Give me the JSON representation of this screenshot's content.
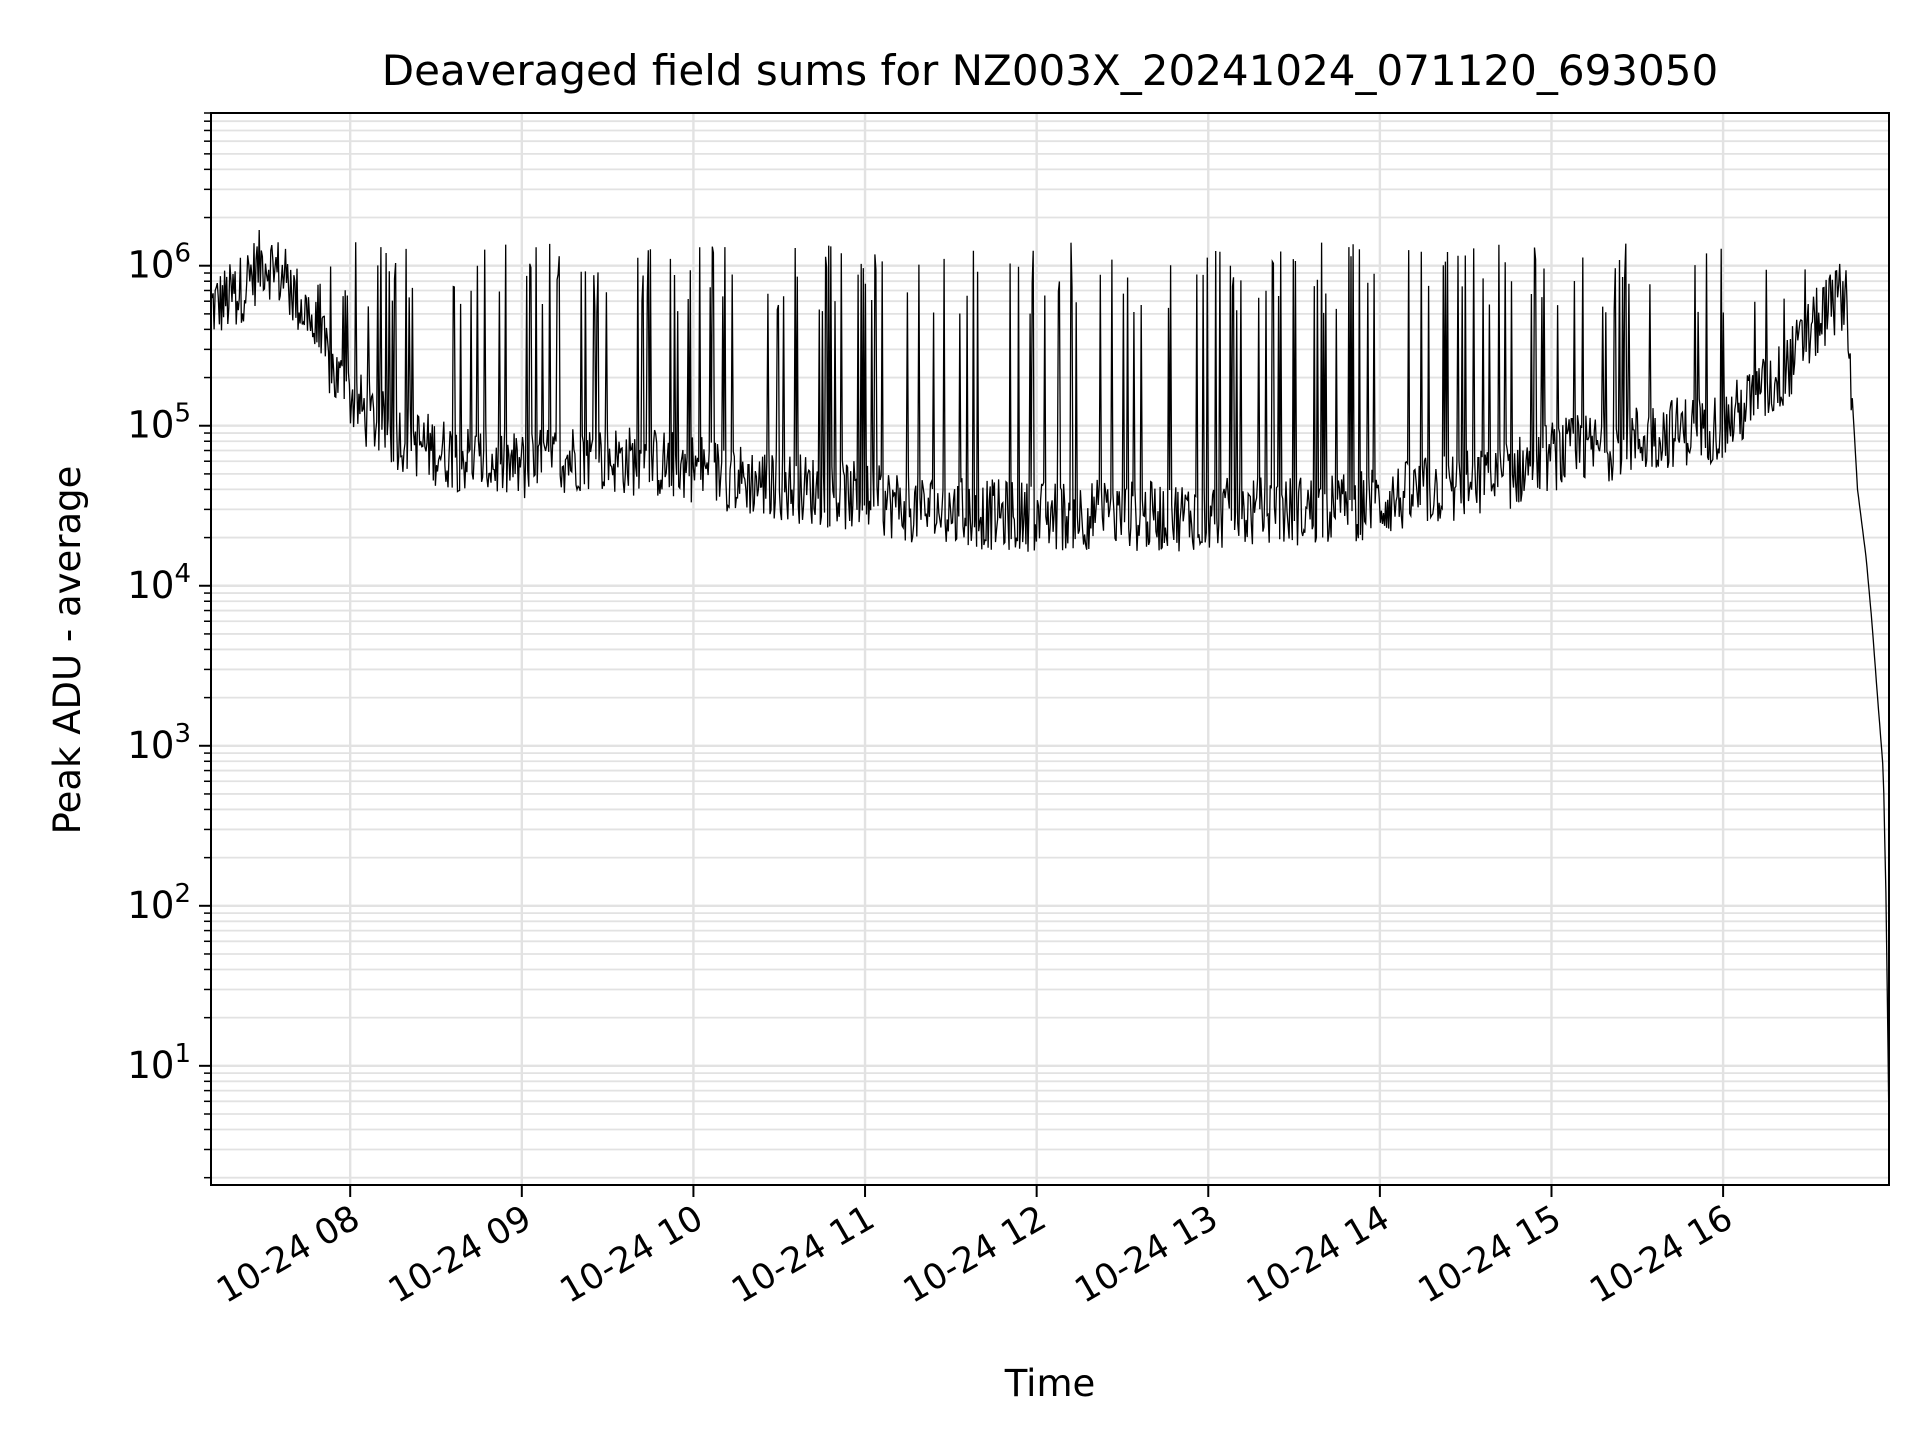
{
  "chart_data": {
    "type": "line",
    "title": "Deaveraged field sums for NZ003X_20241024_071120_693050",
    "xlabel": "Time",
    "ylabel": "Peak ADU - average",
    "xscale": "time",
    "yscale": "log",
    "xlim": [
      "2024-10-24T07:11:20",
      "2024-10-24T16:58:00"
    ],
    "ylim": [
      1.8,
      9000000
    ],
    "grid": "on (major and minor)",
    "line_color": "#000000",
    "x_ticks": [
      {
        "value": "2024-10-24T08:00:00",
        "label": "10-24 08"
      },
      {
        "value": "2024-10-24T09:00:00",
        "label": "10-24 09"
      },
      {
        "value": "2024-10-24T10:00:00",
        "label": "10-24 10"
      },
      {
        "value": "2024-10-24T11:00:00",
        "label": "10-24 11"
      },
      {
        "value": "2024-10-24T12:00:00",
        "label": "10-24 12"
      },
      {
        "value": "2024-10-24T13:00:00",
        "label": "10-24 13"
      },
      {
        "value": "2024-10-24T14:00:00",
        "label": "10-24 14"
      },
      {
        "value": "2024-10-24T15:00:00",
        "label": "10-24 15"
      },
      {
        "value": "2024-10-24T16:00:00",
        "label": "10-24 16"
      }
    ],
    "y_ticks": [
      {
        "value": 10,
        "base": "10",
        "exp": "1"
      },
      {
        "value": 100,
        "base": "10",
        "exp": "2"
      },
      {
        "value": 1000,
        "base": "10",
        "exp": "3"
      },
      {
        "value": 10000,
        "base": "10",
        "exp": "4"
      },
      {
        "value": 100000,
        "base": "10",
        "exp": "5"
      },
      {
        "value": 1000000,
        "base": "10",
        "exp": "6"
      }
    ],
    "series": [
      {
        "x": [
          "2024-10-24T07:11:20",
          "2024-10-24T07:20:00",
          "2024-10-24T07:30:00",
          "2024-10-24T07:35:00",
          "2024-10-24T07:45:00",
          "2024-10-24T07:55:00",
          "2024-10-24T08:05:00",
          "2024-10-24T08:15:00",
          "2024-10-24T08:30:00",
          "2024-10-24T08:45:00",
          "2024-10-24T09:00:00",
          "2024-10-24T09:20:00",
          "2024-10-24T09:40:00",
          "2024-10-24T10:00:00",
          "2024-10-24T10:20:00",
          "2024-10-24T10:40:00",
          "2024-10-24T11:00:00",
          "2024-10-24T11:20:00",
          "2024-10-24T11:40:00",
          "2024-10-24T12:00:00",
          "2024-10-24T12:20:00",
          "2024-10-24T12:40:00",
          "2024-10-24T13:00:00",
          "2024-10-24T13:20:00",
          "2024-10-24T13:40:00",
          "2024-10-24T14:00:00",
          "2024-10-24T14:20:00",
          "2024-10-24T14:40:00",
          "2024-10-24T15:00:00",
          "2024-10-24T15:20:00",
          "2024-10-24T15:40:00",
          "2024-10-24T16:00:00",
          "2024-10-24T16:20:00",
          "2024-10-24T16:35:00",
          "2024-10-24T16:43:00",
          "2024-10-24T16:47:00",
          "2024-10-24T16:50:00",
          "2024-10-24T16:52:00",
          "2024-10-24T16:54:00",
          "2024-10-24T16:56:00",
          "2024-10-24T16:57:00",
          "2024-10-24T16:58:00"
        ],
        "y": [
          550000,
          650000,
          1100000,
          900000,
          500000,
          200000,
          120000,
          90000,
          70000,
          60000,
          55000,
          65000,
          60000,
          55000,
          45000,
          40000,
          35000,
          30000,
          28000,
          27000,
          28000,
          27000,
          28000,
          29000,
          30000,
          33000,
          40000,
          45000,
          65000,
          75000,
          90000,
          100000,
          200000,
          500000,
          700000,
          40000,
          15000,
          6000,
          2000,
          700,
          100,
          4
        ]
      }
    ]
  }
}
